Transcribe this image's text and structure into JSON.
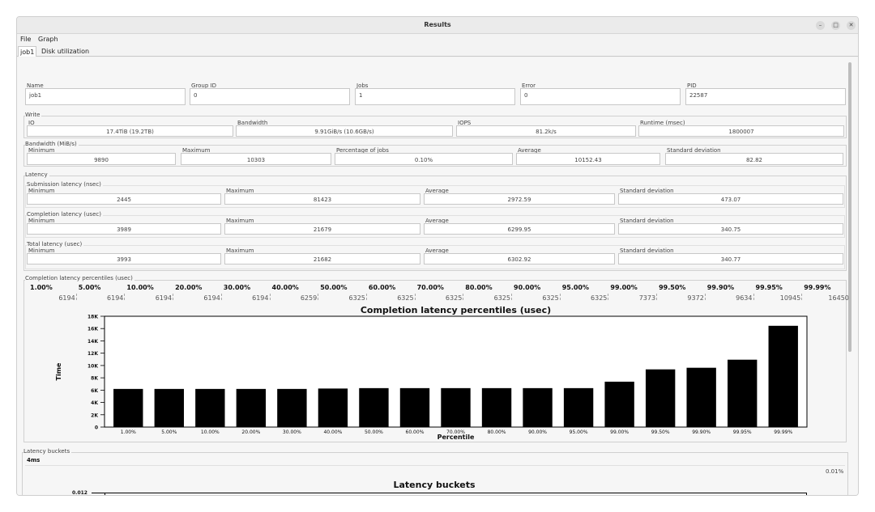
{
  "window": {
    "title": "Results"
  },
  "menu": [
    "File",
    "Graph"
  ],
  "tabs": [
    "job1",
    "Disk utilization"
  ],
  "job": [
    {
      "label": "Name",
      "value": "job1"
    },
    {
      "label": "Group ID",
      "value": "0"
    },
    {
      "label": "Jobs",
      "value": "1"
    },
    {
      "label": "Error",
      "value": "0"
    },
    {
      "label": "PID",
      "value": "22587"
    }
  ],
  "write": {
    "legend": "Write",
    "fields": [
      {
        "label": "IO",
        "value": "17.4TiB (19.2TB)"
      },
      {
        "label": "Bandwidth",
        "value": "9.91GiB/s (10.6GB/s)"
      },
      {
        "label": "IOPS",
        "value": "81.2k/s"
      },
      {
        "label": "Runtime (msec)",
        "value": "1800007"
      }
    ]
  },
  "bandwidth": {
    "legend": "Bandwidth (MiB/s)",
    "fields": [
      {
        "label": "Minimum",
        "value": "9890"
      },
      {
        "label": "Maximum",
        "value": "10303"
      },
      {
        "label": "Percentage of jobs",
        "value": "0.10%"
      },
      {
        "label": "Average",
        "value": "10152.43"
      },
      {
        "label": "Standard deviation",
        "value": "82.82"
      }
    ]
  },
  "latency": {
    "legend": "Latency",
    "groups": [
      {
        "legend": "Submission latency (nsec)",
        "fields": [
          {
            "label": "Minimum",
            "value": "2445"
          },
          {
            "label": "Maximum",
            "value": "81423"
          },
          {
            "label": "Average",
            "value": "2972.59"
          },
          {
            "label": "Standard deviation",
            "value": "473.07"
          }
        ]
      },
      {
        "legend": "Completion latency (usec)",
        "fields": [
          {
            "label": "Minimum",
            "value": "3989"
          },
          {
            "label": "Maximum",
            "value": "21679"
          },
          {
            "label": "Average",
            "value": "6299.95"
          },
          {
            "label": "Standard deviation",
            "value": "340.75"
          }
        ]
      },
      {
        "legend": "Total latency (usec)",
        "fields": [
          {
            "label": "Minimum",
            "value": "3993"
          },
          {
            "label": "Maximum",
            "value": "21682"
          },
          {
            "label": "Average",
            "value": "6302.92"
          },
          {
            "label": "Standard deviation",
            "value": "340.77"
          }
        ]
      }
    ]
  },
  "percentiles": {
    "legend": "Completion latency percentiles (usec)",
    "labels": [
      "1.00%",
      "5.00%",
      "10.00%",
      "20.00%",
      "30.00%",
      "40.00%",
      "50.00%",
      "60.00%",
      "70.00%",
      "80.00%",
      "90.00%",
      "95.00%",
      "99.00%",
      "99.50%",
      "99.90%",
      "99.95%",
      "99.99%"
    ],
    "values": [
      "6194",
      "6194",
      "6194",
      "6194",
      "6194",
      "6259",
      "6325",
      "6325",
      "6325",
      "6325",
      "6325",
      "6325",
      "7373",
      "9372",
      "9634",
      "10945",
      "16450"
    ]
  },
  "chart_data": {
    "type": "bar",
    "title": "Completion latency percentiles (usec)",
    "xlabel": "Percentile",
    "ylabel": "Time",
    "categories": [
      "1.00%",
      "5.00%",
      "10.00%",
      "20.00%",
      "30.00%",
      "40.00%",
      "50.00%",
      "60.00%",
      "70.00%",
      "80.00%",
      "90.00%",
      "95.00%",
      "99.00%",
      "99.50%",
      "99.90%",
      "99.95%",
      "99.99%"
    ],
    "values": [
      6194,
      6194,
      6194,
      6194,
      6194,
      6259,
      6325,
      6325,
      6325,
      6325,
      6325,
      6325,
      7373,
      9372,
      9634,
      10945,
      16450
    ],
    "yticks": [
      0,
      2000,
      4000,
      6000,
      8000,
      10000,
      12000,
      14000,
      16000,
      18000
    ],
    "ytick_labels": [
      "0",
      "2K",
      "4K",
      "6K",
      "8K",
      "10K",
      "12K",
      "14K",
      "16K",
      "18K"
    ],
    "ylim": [
      0,
      18000
    ],
    "color": "#000000"
  },
  "buckets": {
    "legend": "Latency buckets",
    "bucket": "4ms",
    "pct": "0.01%",
    "title": "Latency buckets",
    "ytick": "0.012"
  },
  "colors": {
    "bar": "#000000",
    "window_bg": "#f3f3f3"
  }
}
